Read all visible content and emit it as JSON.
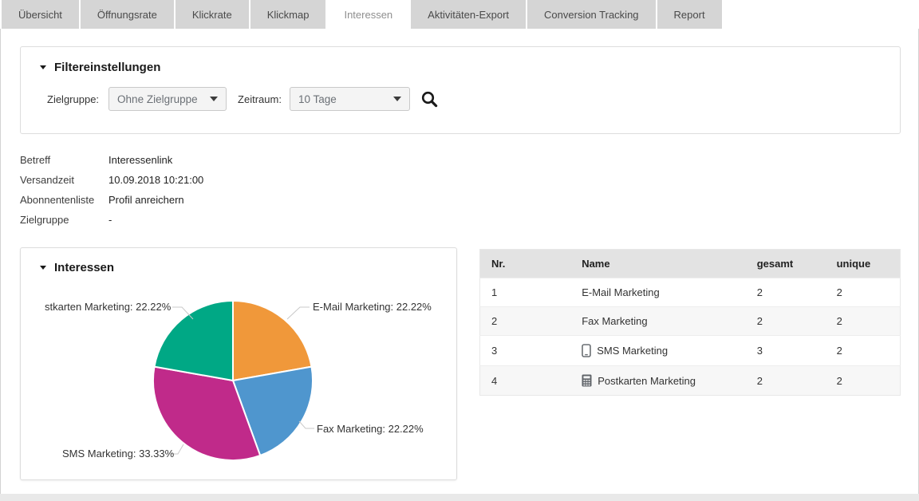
{
  "tabs": {
    "active": "Interessen",
    "items": [
      {
        "label": "Übersicht"
      },
      {
        "label": "Öffnungsrate"
      },
      {
        "label": "Klickrate"
      },
      {
        "label": "Klickmap"
      },
      {
        "label": "Interessen"
      },
      {
        "label": "Aktivitäten-Export"
      },
      {
        "label": "Conversion Tracking"
      },
      {
        "label": "Report"
      }
    ]
  },
  "filter": {
    "title": "Filtereinstellungen",
    "zielgruppe": {
      "label": "Zielgruppe:",
      "value": "Ohne Zielgruppe"
    },
    "zeitraum": {
      "label": "Zeitraum:",
      "value": "10 Tage"
    },
    "search_icon": "search-icon"
  },
  "details": {
    "rows": [
      {
        "label": "Betreff",
        "value": "Interessenlink"
      },
      {
        "label": "Versandzeit",
        "value": "10.09.2018 10:21:00"
      },
      {
        "label": "Abonnentenliste",
        "value": "Profil anreichern"
      },
      {
        "label": "Zielgruppe",
        "value": "-"
      }
    ]
  },
  "interessen_panel": {
    "title": "Interessen"
  },
  "chart_data": {
    "type": "pie",
    "title": "Interessen",
    "labels": [
      "E-Mail Marketing",
      "Fax Marketing",
      "SMS Marketing",
      "Postkarten Marketing"
    ],
    "values": [
      22.22,
      22.22,
      33.33,
      22.22
    ],
    "colors": [
      "#f0983a",
      "#4f96ce",
      "#c02a8a",
      "#00a885"
    ],
    "start_angle": "top",
    "direction": "clockwise",
    "callouts": {
      "email": "E-Mail Marketing: 22.22%",
      "fax": "Fax Marketing: 22.22%",
      "sms": "SMS Marketing: 33.33%",
      "postkarten_truncated": "stkarten Marketing: 22.22%"
    }
  },
  "table": {
    "headers": [
      "Nr.",
      "Name",
      "gesamt",
      "unique"
    ],
    "rows": [
      {
        "nr": "1",
        "name": "E-Mail Marketing",
        "icon": "",
        "gesamt": "2",
        "unique": "2"
      },
      {
        "nr": "2",
        "name": "Fax Marketing",
        "icon": "",
        "gesamt": "2",
        "unique": "2"
      },
      {
        "nr": "3",
        "name": "SMS Marketing",
        "icon": "smartphone-icon",
        "gesamt": "3",
        "unique": "2"
      },
      {
        "nr": "4",
        "name": "Postkarten Marketing",
        "icon": "postcard-icon",
        "gesamt": "2",
        "unique": "2"
      }
    ]
  }
}
